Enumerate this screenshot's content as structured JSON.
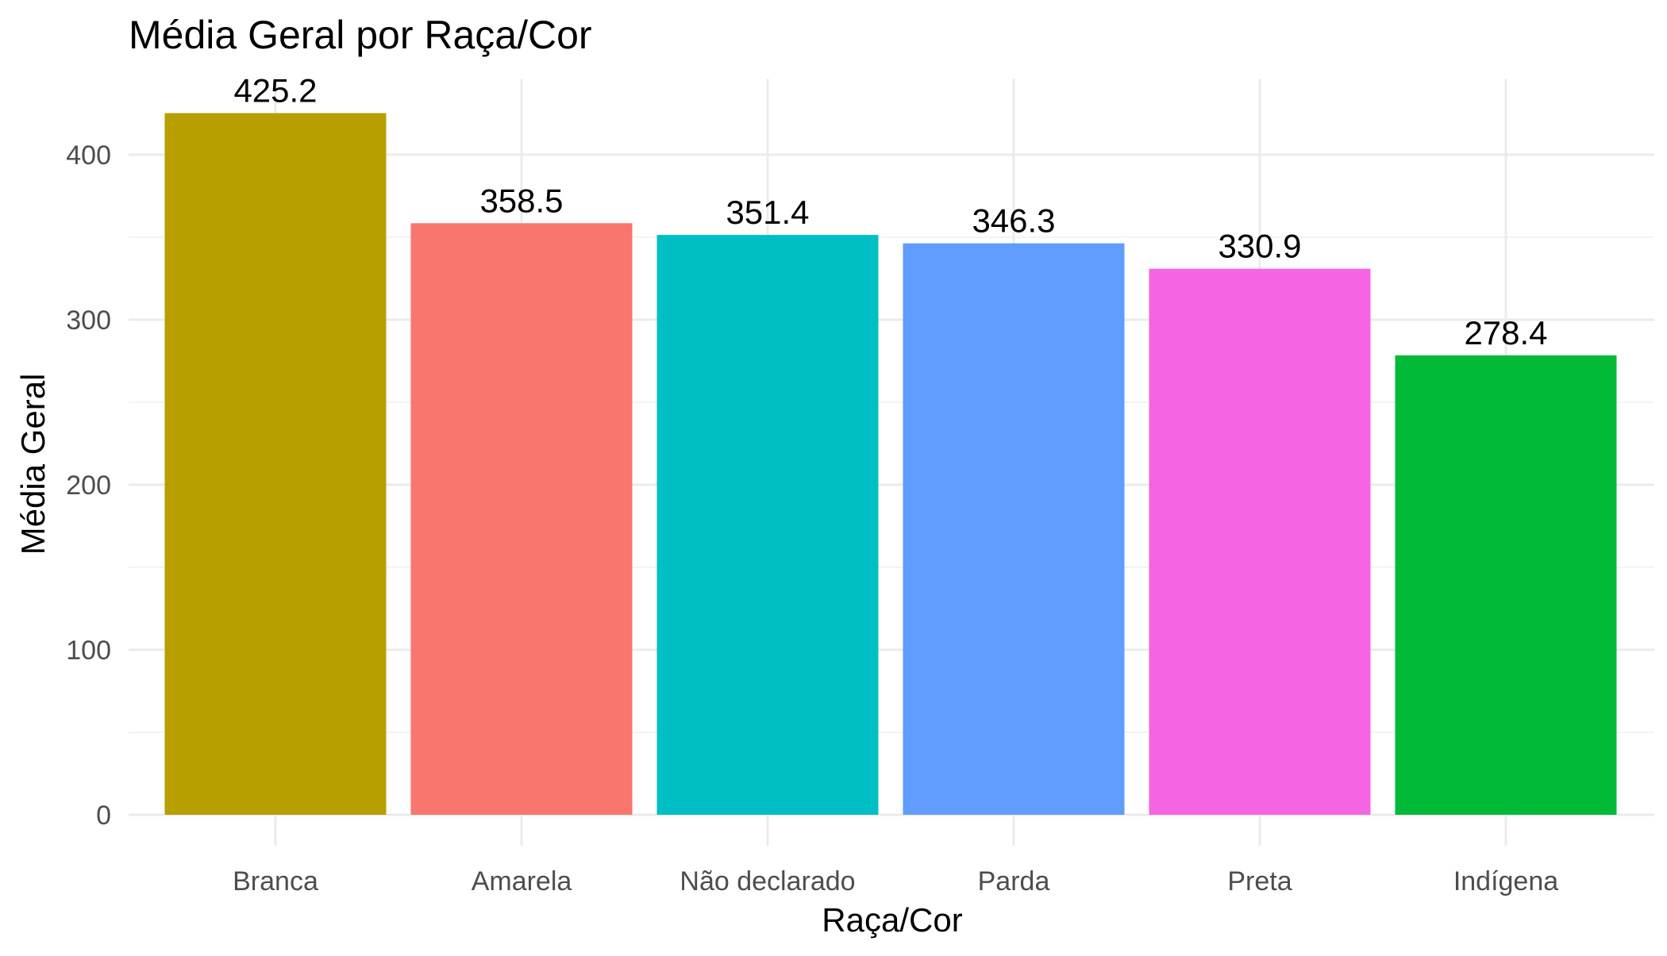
{
  "chart_data": {
    "type": "bar",
    "title": "Média Geral por Raça/Cor",
    "xlabel": "Raça/Cor",
    "ylabel": "Média Geral",
    "categories": [
      "Branca",
      "Amarela",
      "Não declarado",
      "Parda",
      "Preta",
      "Indígena"
    ],
    "values": [
      425.2,
      358.5,
      351.4,
      346.3,
      330.9,
      278.4
    ],
    "value_labels": [
      "425.2",
      "358.5",
      "351.4",
      "346.3",
      "330.9",
      "278.4"
    ],
    "colors": [
      "#B79F00",
      "#F8766D",
      "#00BFC4",
      "#619CFF",
      "#F564E3",
      "#00BA38"
    ],
    "yticks": [
      0,
      100,
      200,
      300,
      400
    ],
    "ytick_labels": [
      "0",
      "100",
      "200",
      "300",
      "400"
    ],
    "ylim": [
      0,
      446
    ],
    "grid": true,
    "legend": "none"
  }
}
